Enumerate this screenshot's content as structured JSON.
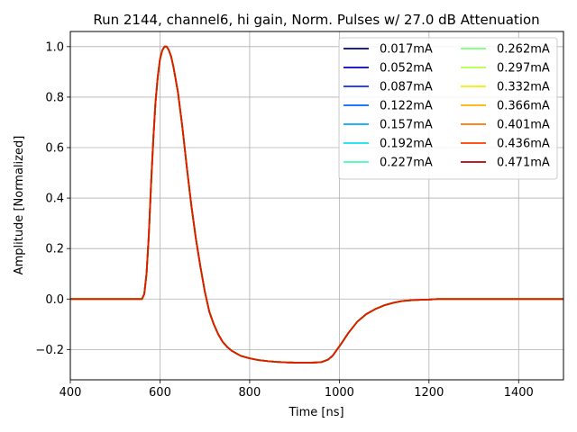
{
  "chart_data": {
    "type": "line",
    "title": "Run 2144, channel6, hi gain, Norm. Pulses w/ 27.0 dB Attenuation",
    "xlabel": "Time [ns]",
    "ylabel": "Amplitude [Normalized]",
    "xlim": [
      400,
      1500
    ],
    "ylim": [
      -0.32,
      1.06
    ],
    "xticks": [
      400,
      600,
      800,
      1000,
      1200,
      1400
    ],
    "yticks": [
      -0.2,
      0.0,
      0.2,
      0.4,
      0.6,
      0.8,
      1.0
    ],
    "xtick_labels": [
      "400",
      "600",
      "800",
      "1000",
      "1200",
      "1400"
    ],
    "ytick_labels": [
      "−0.2",
      "0.0",
      "0.2",
      "0.4",
      "0.6",
      "0.8",
      "1.0"
    ],
    "grid": true,
    "legend": {
      "placement": "top-right",
      "columns": 2
    },
    "x": [
      400,
      560,
      565,
      570,
      575,
      580,
      585,
      590,
      595,
      600,
      605,
      610,
      615,
      620,
      625,
      630,
      640,
      650,
      660,
      670,
      680,
      690,
      700,
      710,
      720,
      730,
      740,
      750,
      760,
      780,
      800,
      820,
      840,
      860,
      880,
      900,
      920,
      940,
      960,
      975,
      985,
      995,
      1005,
      1020,
      1040,
      1060,
      1080,
      1100,
      1120,
      1140,
      1160,
      1180,
      1200,
      1220,
      1250,
      1500
    ],
    "series": [
      {
        "name": "0.017mA",
        "color": "#00007f",
        "values": [
          0.0,
          0.0,
          0.02,
          0.1,
          0.25,
          0.45,
          0.63,
          0.78,
          0.88,
          0.95,
          0.985,
          1.0,
          1.0,
          0.985,
          0.96,
          0.92,
          0.82,
          0.68,
          0.52,
          0.37,
          0.24,
          0.13,
          0.03,
          -0.05,
          -0.1,
          -0.14,
          -0.17,
          -0.19,
          -0.205,
          -0.225,
          -0.235,
          -0.242,
          -0.246,
          -0.249,
          -0.251,
          -0.252,
          -0.252,
          -0.252,
          -0.25,
          -0.24,
          -0.225,
          -0.2,
          -0.175,
          -0.135,
          -0.09,
          -0.06,
          -0.04,
          -0.025,
          -0.015,
          -0.008,
          -0.005,
          -0.003,
          -0.002,
          0.0,
          0.0,
          0.0
        ]
      },
      {
        "name": "0.052mA",
        "color": "#0000c8",
        "values": [
          0.0,
          0.0,
          0.02,
          0.1,
          0.25,
          0.45,
          0.63,
          0.78,
          0.88,
          0.95,
          0.985,
          1.0,
          1.0,
          0.985,
          0.96,
          0.92,
          0.82,
          0.68,
          0.52,
          0.37,
          0.24,
          0.13,
          0.03,
          -0.05,
          -0.1,
          -0.14,
          -0.17,
          -0.19,
          -0.205,
          -0.225,
          -0.235,
          -0.242,
          -0.246,
          -0.249,
          -0.251,
          -0.252,
          -0.252,
          -0.252,
          -0.25,
          -0.24,
          -0.225,
          -0.2,
          -0.175,
          -0.135,
          -0.09,
          -0.06,
          -0.04,
          -0.025,
          -0.015,
          -0.008,
          -0.005,
          -0.003,
          -0.002,
          0.0,
          0.0,
          0.0
        ]
      },
      {
        "name": "0.087mA",
        "color": "#0a2cff",
        "values": [
          0.0,
          0.0,
          0.02,
          0.1,
          0.25,
          0.45,
          0.63,
          0.78,
          0.88,
          0.95,
          0.985,
          1.0,
          1.0,
          0.985,
          0.96,
          0.92,
          0.82,
          0.68,
          0.52,
          0.37,
          0.24,
          0.13,
          0.03,
          -0.05,
          -0.1,
          -0.14,
          -0.17,
          -0.19,
          -0.205,
          -0.225,
          -0.235,
          -0.242,
          -0.246,
          -0.249,
          -0.251,
          -0.252,
          -0.252,
          -0.252,
          -0.25,
          -0.24,
          -0.225,
          -0.2,
          -0.175,
          -0.135,
          -0.09,
          -0.06,
          -0.04,
          -0.025,
          -0.015,
          -0.008,
          -0.005,
          -0.003,
          -0.002,
          0.0,
          0.0,
          0.0
        ]
      },
      {
        "name": "0.122mA",
        "color": "#0066ff",
        "values": [
          0.0,
          0.0,
          0.02,
          0.1,
          0.25,
          0.45,
          0.63,
          0.78,
          0.88,
          0.95,
          0.985,
          1.0,
          1.0,
          0.985,
          0.96,
          0.92,
          0.82,
          0.68,
          0.52,
          0.37,
          0.24,
          0.13,
          0.03,
          -0.05,
          -0.1,
          -0.14,
          -0.17,
          -0.19,
          -0.205,
          -0.225,
          -0.235,
          -0.242,
          -0.246,
          -0.249,
          -0.251,
          -0.252,
          -0.252,
          -0.252,
          -0.25,
          -0.24,
          -0.225,
          -0.2,
          -0.175,
          -0.135,
          -0.09,
          -0.06,
          -0.04,
          -0.025,
          -0.015,
          -0.008,
          -0.005,
          -0.003,
          -0.002,
          0.0,
          0.0,
          0.0
        ]
      },
      {
        "name": "0.157mA",
        "color": "#00a8ff",
        "values": [
          0.0,
          0.0,
          0.02,
          0.1,
          0.25,
          0.45,
          0.63,
          0.78,
          0.88,
          0.95,
          0.985,
          1.0,
          1.0,
          0.985,
          0.96,
          0.92,
          0.82,
          0.68,
          0.52,
          0.37,
          0.24,
          0.13,
          0.03,
          -0.05,
          -0.1,
          -0.14,
          -0.17,
          -0.19,
          -0.205,
          -0.225,
          -0.235,
          -0.242,
          -0.246,
          -0.249,
          -0.251,
          -0.252,
          -0.252,
          -0.252,
          -0.25,
          -0.24,
          -0.225,
          -0.2,
          -0.175,
          -0.135,
          -0.09,
          -0.06,
          -0.04,
          -0.025,
          -0.015,
          -0.008,
          -0.005,
          -0.003,
          -0.002,
          0.0,
          0.0,
          0.0
        ]
      },
      {
        "name": "0.192mA",
        "color": "#10e0ef",
        "values": [
          0.0,
          0.0,
          0.02,
          0.1,
          0.25,
          0.45,
          0.63,
          0.78,
          0.88,
          0.95,
          0.985,
          1.0,
          1.0,
          0.985,
          0.96,
          0.92,
          0.82,
          0.68,
          0.52,
          0.37,
          0.24,
          0.13,
          0.03,
          -0.05,
          -0.1,
          -0.14,
          -0.17,
          -0.19,
          -0.205,
          -0.225,
          -0.235,
          -0.242,
          -0.246,
          -0.249,
          -0.251,
          -0.252,
          -0.252,
          -0.252,
          -0.25,
          -0.24,
          -0.225,
          -0.2,
          -0.175,
          -0.135,
          -0.09,
          -0.06,
          -0.04,
          -0.025,
          -0.015,
          -0.008,
          -0.005,
          -0.003,
          -0.002,
          0.0,
          0.0,
          0.0
        ]
      },
      {
        "name": "0.227mA",
        "color": "#40ffb6",
        "values": [
          0.0,
          0.0,
          0.02,
          0.1,
          0.25,
          0.45,
          0.63,
          0.78,
          0.88,
          0.95,
          0.985,
          1.0,
          1.0,
          0.985,
          0.96,
          0.92,
          0.82,
          0.68,
          0.52,
          0.37,
          0.24,
          0.13,
          0.03,
          -0.05,
          -0.1,
          -0.14,
          -0.17,
          -0.19,
          -0.205,
          -0.225,
          -0.235,
          -0.242,
          -0.246,
          -0.249,
          -0.251,
          -0.252,
          -0.252,
          -0.252,
          -0.25,
          -0.24,
          -0.225,
          -0.2,
          -0.175,
          -0.135,
          -0.09,
          -0.06,
          -0.04,
          -0.025,
          -0.015,
          -0.008,
          -0.005,
          -0.003,
          -0.002,
          0.0,
          0.0,
          0.0
        ]
      },
      {
        "name": "0.262mA",
        "color": "#7cff79",
        "values": [
          0.0,
          0.0,
          0.02,
          0.1,
          0.25,
          0.45,
          0.63,
          0.78,
          0.88,
          0.95,
          0.985,
          1.0,
          1.0,
          0.985,
          0.96,
          0.92,
          0.82,
          0.68,
          0.52,
          0.37,
          0.24,
          0.13,
          0.03,
          -0.05,
          -0.1,
          -0.14,
          -0.17,
          -0.19,
          -0.205,
          -0.225,
          -0.235,
          -0.242,
          -0.246,
          -0.249,
          -0.251,
          -0.252,
          -0.252,
          -0.252,
          -0.25,
          -0.24,
          -0.225,
          -0.2,
          -0.175,
          -0.135,
          -0.09,
          -0.06,
          -0.04,
          -0.025,
          -0.015,
          -0.008,
          -0.005,
          -0.003,
          -0.002,
          0.0,
          0.0,
          0.0
        ]
      },
      {
        "name": "0.297mA",
        "color": "#b6ff40",
        "values": [
          0.0,
          0.0,
          0.02,
          0.1,
          0.25,
          0.45,
          0.63,
          0.78,
          0.88,
          0.95,
          0.985,
          1.0,
          1.0,
          0.985,
          0.96,
          0.92,
          0.82,
          0.68,
          0.52,
          0.37,
          0.24,
          0.13,
          0.03,
          -0.05,
          -0.1,
          -0.14,
          -0.17,
          -0.19,
          -0.205,
          -0.225,
          -0.235,
          -0.242,
          -0.246,
          -0.249,
          -0.251,
          -0.252,
          -0.252,
          -0.252,
          -0.25,
          -0.24,
          -0.225,
          -0.2,
          -0.175,
          -0.135,
          -0.09,
          -0.06,
          -0.04,
          -0.025,
          -0.015,
          -0.008,
          -0.005,
          -0.003,
          -0.002,
          0.0,
          0.0,
          0.0
        ]
      },
      {
        "name": "0.332mA",
        "color": "#efed08",
        "values": [
          0.0,
          0.0,
          0.02,
          0.1,
          0.25,
          0.45,
          0.63,
          0.78,
          0.88,
          0.95,
          0.985,
          1.0,
          1.0,
          0.985,
          0.96,
          0.92,
          0.82,
          0.68,
          0.52,
          0.37,
          0.24,
          0.13,
          0.03,
          -0.05,
          -0.1,
          -0.14,
          -0.17,
          -0.19,
          -0.205,
          -0.225,
          -0.235,
          -0.242,
          -0.246,
          -0.249,
          -0.251,
          -0.252,
          -0.252,
          -0.252,
          -0.25,
          -0.24,
          -0.225,
          -0.2,
          -0.175,
          -0.135,
          -0.09,
          -0.06,
          -0.04,
          -0.025,
          -0.015,
          -0.008,
          -0.005,
          -0.003,
          -0.002,
          0.0,
          0.0,
          0.0
        ]
      },
      {
        "name": "0.366mA",
        "color": "#ffb000",
        "values": [
          0.0,
          0.0,
          0.02,
          0.1,
          0.25,
          0.45,
          0.63,
          0.78,
          0.88,
          0.95,
          0.985,
          1.0,
          1.0,
          0.985,
          0.96,
          0.92,
          0.82,
          0.68,
          0.52,
          0.37,
          0.24,
          0.13,
          0.03,
          -0.05,
          -0.1,
          -0.14,
          -0.17,
          -0.19,
          -0.205,
          -0.225,
          -0.235,
          -0.242,
          -0.246,
          -0.249,
          -0.251,
          -0.252,
          -0.252,
          -0.252,
          -0.25,
          -0.24,
          -0.225,
          -0.2,
          -0.175,
          -0.135,
          -0.09,
          -0.06,
          -0.04,
          -0.025,
          -0.015,
          -0.008,
          -0.005,
          -0.003,
          -0.002,
          0.0,
          0.0,
          0.0
        ]
      },
      {
        "name": "0.401mA",
        "color": "#ff7400",
        "values": [
          0.0,
          0.0,
          0.02,
          0.1,
          0.25,
          0.45,
          0.63,
          0.78,
          0.88,
          0.95,
          0.985,
          1.0,
          1.0,
          0.985,
          0.96,
          0.92,
          0.82,
          0.68,
          0.52,
          0.37,
          0.24,
          0.13,
          0.03,
          -0.05,
          -0.1,
          -0.14,
          -0.17,
          -0.19,
          -0.205,
          -0.225,
          -0.235,
          -0.242,
          -0.246,
          -0.249,
          -0.251,
          -0.252,
          -0.252,
          -0.252,
          -0.25,
          -0.24,
          -0.225,
          -0.2,
          -0.175,
          -0.135,
          -0.09,
          -0.06,
          -0.04,
          -0.025,
          -0.015,
          -0.008,
          -0.005,
          -0.003,
          -0.002,
          0.0,
          0.0,
          0.0
        ]
      },
      {
        "name": "0.436mA",
        "color": "#ff3b00",
        "values": [
          0.0,
          0.0,
          0.02,
          0.1,
          0.25,
          0.45,
          0.63,
          0.78,
          0.88,
          0.95,
          0.985,
          1.0,
          1.0,
          0.985,
          0.96,
          0.92,
          0.82,
          0.68,
          0.52,
          0.37,
          0.24,
          0.13,
          0.03,
          -0.05,
          -0.1,
          -0.14,
          -0.17,
          -0.19,
          -0.205,
          -0.225,
          -0.235,
          -0.242,
          -0.246,
          -0.249,
          -0.251,
          -0.252,
          -0.252,
          -0.252,
          -0.25,
          -0.24,
          -0.225,
          -0.2,
          -0.175,
          -0.135,
          -0.09,
          -0.06,
          -0.04,
          -0.025,
          -0.015,
          -0.008,
          -0.005,
          -0.003,
          -0.002,
          0.0,
          0.0,
          0.0
        ]
      },
      {
        "name": "0.471mA",
        "color": "#b20000",
        "values": [
          0.0,
          0.0,
          0.02,
          0.1,
          0.25,
          0.45,
          0.63,
          0.78,
          0.88,
          0.95,
          0.985,
          1.0,
          1.0,
          0.985,
          0.96,
          0.92,
          0.82,
          0.68,
          0.52,
          0.37,
          0.24,
          0.13,
          0.03,
          -0.05,
          -0.1,
          -0.14,
          -0.17,
          -0.19,
          -0.205,
          -0.225,
          -0.235,
          -0.242,
          -0.246,
          -0.249,
          -0.251,
          -0.252,
          -0.252,
          -0.252,
          -0.25,
          -0.24,
          -0.225,
          -0.2,
          -0.175,
          -0.135,
          -0.09,
          -0.06,
          -0.04,
          -0.025,
          -0.015,
          -0.008,
          -0.005,
          -0.003,
          -0.002,
          0.0,
          0.0,
          0.0
        ]
      }
    ],
    "top_visible_color": "#d42000"
  }
}
